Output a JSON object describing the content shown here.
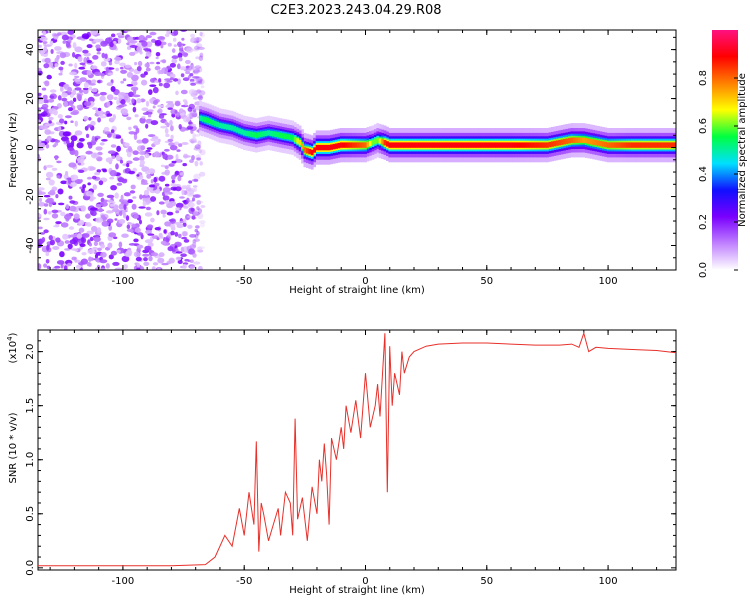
{
  "title": "C2E3.2023.243.04.29.R08",
  "chart_data": [
    {
      "type": "heatmap",
      "xlabel": "Height of straight line (km)",
      "ylabel": "Frequency (Hz)",
      "xlim": [
        -135,
        128
      ],
      "ylim": [
        -50,
        48
      ],
      "xticks": [
        -100,
        -50,
        0,
        50,
        100
      ],
      "yticks": [
        -40,
        -20,
        0,
        20,
        40
      ],
      "colorbar": {
        "label": "Normalized spectral amplitude",
        "range": [
          0.0,
          1.0
        ],
        "ticks": [
          "0.0",
          "0.2",
          "0.4",
          "0.6",
          "0.8"
        ],
        "colors": [
          "#ffffff",
          "#c080ff",
          "#7a00ff",
          "#1010ff",
          "#00e0ff",
          "#00ff40",
          "#ffff00",
          "#ff8000",
          "#ff0000",
          "#ff1080"
        ]
      },
      "ridge": {
        "height_km": [
          -68,
          -65,
          -60,
          -55,
          -50,
          -45,
          -40,
          -35,
          -30,
          -27,
          -25,
          -22,
          -20,
          -15,
          -10,
          -5,
          0,
          3,
          5,
          8,
          10,
          20,
          40,
          60,
          75,
          85,
          90,
          100,
          110,
          128
        ],
        "frequency_hz": [
          12,
          11,
          9,
          8,
          6,
          5,
          6,
          5,
          4,
          2,
          -1,
          -2,
          0,
          0,
          1,
          1,
          1,
          2,
          3,
          2,
          1,
          1,
          1,
          1,
          1,
          3,
          3,
          1,
          1,
          1
        ],
        "peak_amplitude": [
          0.5,
          0.55,
          0.5,
          0.5,
          0.5,
          0.55,
          0.5,
          0.55,
          0.55,
          0.7,
          0.8,
          0.9,
          0.9,
          0.9,
          0.9,
          0.85,
          0.8,
          0.6,
          0.6,
          0.85,
          0.9,
          0.9,
          0.9,
          0.9,
          0.85,
          0.8,
          0.75,
          0.8,
          0.85,
          0.85
        ]
      },
      "noise_region_km": [
        -135,
        -67
      ]
    },
    {
      "type": "line",
      "xlabel": "Height of straight line (km)",
      "ylabel": "SNR (10 * v/v)",
      "y_multiplier": "(x10",
      "y_multiplier_exp": "4",
      "y_multiplier_close": ")",
      "xlim": [
        -135,
        128
      ],
      "ylim": [
        -0.02,
        2.2
      ],
      "xticks": [
        -100,
        -50,
        0,
        50,
        100
      ],
      "yticks": [
        "0.0",
        "0.5",
        "1.0",
        "1.5",
        "2.0"
      ],
      "series": [
        {
          "color": "#e8302a",
          "x": [
            -135,
            -100,
            -80,
            -66,
            -62,
            -58,
            -55,
            -52,
            -50,
            -48,
            -46,
            -45,
            -44,
            -43,
            -42,
            -40,
            -38,
            -36,
            -35,
            -33,
            -31,
            -30,
            -29,
            -28,
            -26,
            -24,
            -22,
            -20,
            -19,
            -18,
            -17,
            -16,
            -15,
            -14,
            -12,
            -10,
            -9,
            -8,
            -6,
            -4,
            -2,
            0,
            2,
            4,
            5,
            6,
            8,
            9,
            10,
            11,
            12,
            14,
            15,
            16,
            18,
            20,
            25,
            30,
            40,
            50,
            60,
            70,
            80,
            85,
            88,
            90,
            92,
            95,
            100,
            110,
            120,
            128
          ],
          "y": [
            0.02,
            0.02,
            0.02,
            0.03,
            0.1,
            0.3,
            0.2,
            0.55,
            0.3,
            0.7,
            0.4,
            1.17,
            0.15,
            0.6,
            0.5,
            0.25,
            0.4,
            0.55,
            0.3,
            0.7,
            0.6,
            0.3,
            1.38,
            0.45,
            0.65,
            0.25,
            0.75,
            0.5,
            1.0,
            0.8,
            1.15,
            0.85,
            0.4,
            1.2,
            1.0,
            1.3,
            1.1,
            1.5,
            1.25,
            1.55,
            1.2,
            1.8,
            1.3,
            1.5,
            1.7,
            1.4,
            2.17,
            0.7,
            2.05,
            1.5,
            1.8,
            1.6,
            2.0,
            1.8,
            1.95,
            2.0,
            2.05,
            2.07,
            2.08,
            2.08,
            2.07,
            2.06,
            2.06,
            2.07,
            2.04,
            2.17,
            2.0,
            2.04,
            2.03,
            2.02,
            2.01,
            1.99
          ]
        }
      ]
    }
  ]
}
